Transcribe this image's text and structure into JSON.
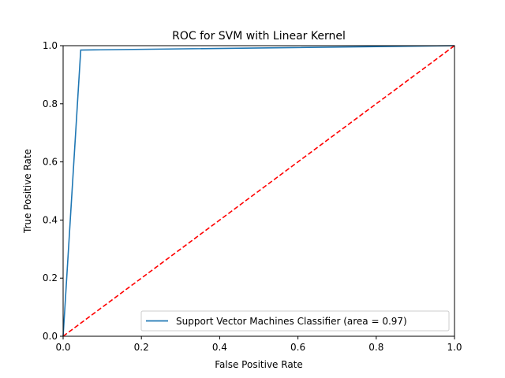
{
  "chart_data": {
    "type": "line",
    "title": "ROC for SVM with Linear Kernel",
    "xlabel": "False Positive Rate",
    "ylabel": "True Positive Rate",
    "xlim": [
      0.0,
      1.0
    ],
    "ylim": [
      0.0,
      1.0
    ],
    "xticks": [
      "0.0",
      "0.2",
      "0.4",
      "0.6",
      "0.8",
      "1.0"
    ],
    "yticks": [
      "0.0",
      "0.2",
      "0.4",
      "0.6",
      "0.8",
      "1.0"
    ],
    "grid": false,
    "legend_position": "lower-right",
    "series": [
      {
        "name": "Support Vector Machines Classifier (area = 0.97)",
        "style": "solid",
        "color": "#1f77b4",
        "points": [
          [
            0.0,
            0.0
          ],
          [
            0.045,
            0.985
          ],
          [
            1.0,
            1.0
          ]
        ]
      },
      {
        "style": "dashed",
        "color": "#ff0000",
        "points": [
          [
            0.0,
            0.0
          ],
          [
            1.0,
            1.0
          ]
        ]
      }
    ]
  }
}
